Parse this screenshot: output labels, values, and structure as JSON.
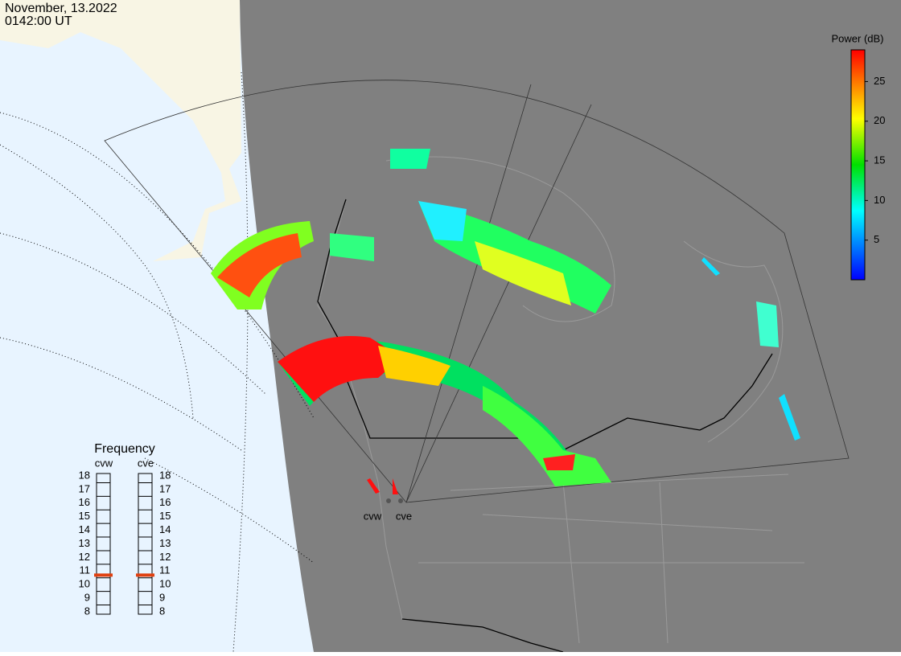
{
  "header": {
    "date": "November, 13.2022",
    "time": "0142:00 UT"
  },
  "colorbar": {
    "label": "Power (dB)",
    "lim": [
      0,
      29
    ],
    "ticks": [
      5,
      10,
      15,
      20,
      25
    ]
  },
  "frequency": {
    "title": "Frequency",
    "lim": [
      8,
      18
    ],
    "ticks": [
      8,
      9,
      10,
      11,
      12,
      13,
      14,
      15,
      16,
      17,
      18
    ],
    "radars": [
      {
        "name": "cvw",
        "value": 10.7
      },
      {
        "name": "cve",
        "value": 10.7
      }
    ]
  },
  "stations": [
    "cvw",
    "cve"
  ]
}
